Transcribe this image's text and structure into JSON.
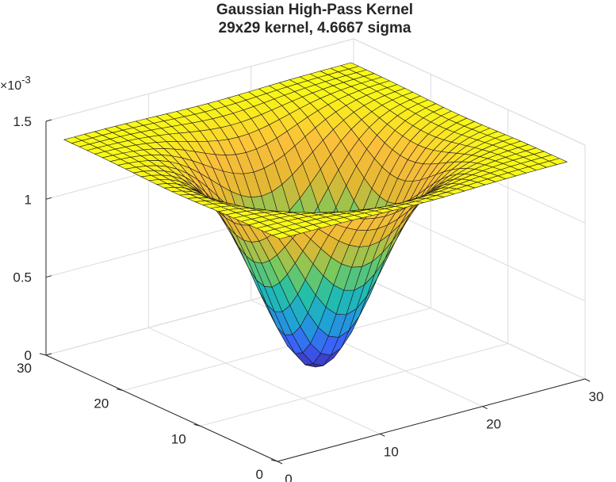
{
  "chart_data": {
    "type": "surface",
    "title": "Gaussian High-Pass Kernel",
    "subtitle": "29x29 kernel, 4.6667 sigma",
    "xlabel": "",
    "ylabel": "",
    "zlabel": "",
    "grid": true,
    "colormap": [
      "#3e26a8",
      "#3a61fa",
      "#1fa2d8",
      "#21bfab",
      "#7cc95a",
      "#e3b732",
      "#fbbf3b",
      "#f9fb15"
    ],
    "surface_formula": "z = c * (1 - exp(-((x-15)^2 + (y-15)^2) / (2 * sigma^2)))",
    "kernel_size": 29,
    "sigma": 4.6667,
    "z_max": 0.0013873,
    "x_range": [
      1,
      29
    ],
    "y_range": [
      1,
      29
    ],
    "xlim": [
      0,
      30
    ],
    "ylim": [
      0,
      30
    ],
    "zlim": [
      0,
      0.0015
    ],
    "x_ticks": [
      0,
      10,
      20,
      30
    ],
    "y_ticks": [
      0,
      10,
      20,
      30
    ],
    "z_ticks": [
      0,
      0.0005,
      0.001,
      0.0015
    ],
    "x_tick_labels": [
      "0",
      "10",
      "20",
      "30"
    ],
    "y_tick_labels": [
      "0",
      "10",
      "20",
      "30"
    ],
    "z_tick_labels": [
      "0",
      "0.5",
      "1",
      "1.5"
    ],
    "z_exponent_prefix": "×10",
    "z_exponent_power": "-3"
  }
}
